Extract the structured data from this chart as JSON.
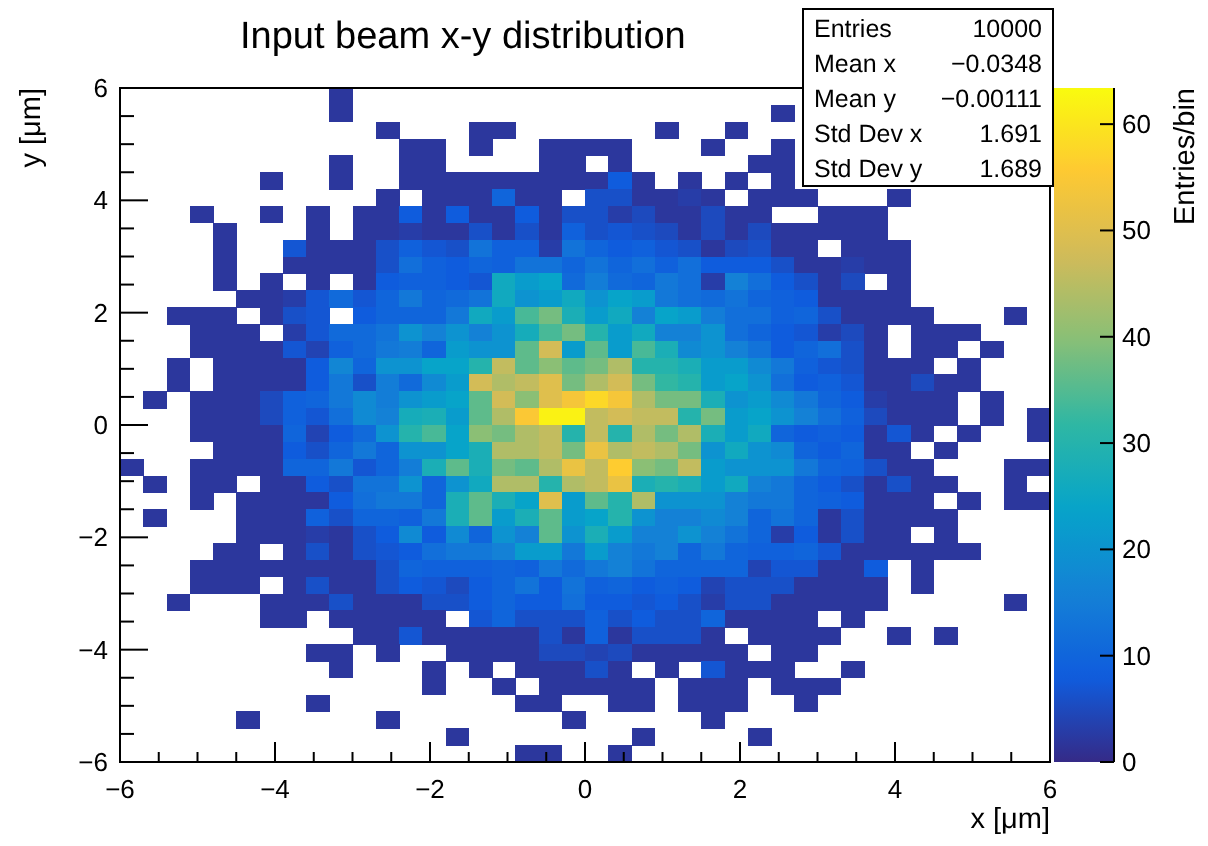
{
  "chart_data": {
    "type": "heatmap",
    "title": "Input beam x-y distribution",
    "xlabel": "x [μm]",
    "ylabel": "y [μm]",
    "clabel": "Entries/bin",
    "annotations": [
      "Entries 10000",
      "Mean x −0.0348",
      "Mean y −0.00111",
      "Std Dev x 1.691",
      "Std Dev y 1.689"
    ],
    "xlim": [
      -6,
      6
    ],
    "ylim": [
      -6,
      6
    ],
    "xticks": [
      -6,
      {
        "value": -5.5,
        "label": null
      },
      {
        "value": -5,
        "label": null
      },
      {
        "value": -4.5,
        "label": null
      },
      -4,
      {
        "value": -3.5,
        "label": null
      },
      {
        "value": -3,
        "label": null
      },
      {
        "value": -2.5,
        "label": null
      },
      -2,
      {
        "value": -1.5,
        "label": null
      },
      {
        "value": -1,
        "label": null
      },
      {
        "value": -0.5,
        "label": null
      },
      0,
      {
        "value": 0.5,
        "label": null
      },
      {
        "value": 1,
        "label": null
      },
      {
        "value": 1.5,
        "label": null
      },
      2,
      {
        "value": 2.5,
        "label": null
      },
      {
        "value": 3,
        "label": null
      },
      {
        "value": 3.5,
        "label": null
      },
      4,
      {
        "value": 4.5,
        "label": null
      },
      {
        "value": 5,
        "label": null
      },
      {
        "value": 5.5,
        "label": null
      },
      6
    ],
    "yticks": [
      -6,
      {
        "value": -5.5,
        "label": null
      },
      {
        "value": -5,
        "label": null
      },
      {
        "value": -4.5,
        "label": null
      },
      -4,
      {
        "value": -3.5,
        "label": null
      },
      {
        "value": -3,
        "label": null
      },
      {
        "value": -2.5,
        "label": null
      },
      -2,
      {
        "value": -1.5,
        "label": null
      },
      {
        "value": -1,
        "label": null
      },
      {
        "value": -0.5,
        "label": null
      },
      0,
      {
        "value": 0.5,
        "label": null
      },
      {
        "value": 1,
        "label": null
      },
      {
        "value": 1.5,
        "label": null
      },
      2,
      {
        "value": 2.5,
        "label": null
      },
      {
        "value": 3,
        "label": null
      },
      {
        "value": 3.5,
        "label": null
      },
      4,
      {
        "value": 4.5,
        "label": null
      },
      {
        "value": 5,
        "label": null
      },
      {
        "value": 5.5,
        "label": null
      },
      6
    ],
    "clim": [
      0,
      63.4
    ],
    "cticks": [
      0,
      10,
      20,
      30,
      40,
      50,
      60
    ],
    "cells": [
      [
        null,
        null,
        null,
        null,
        null,
        null,
        null,
        null,
        null,
        2,
        null,
        null,
        null,
        null,
        null,
        null,
        null,
        null,
        null,
        null,
        null,
        null,
        null,
        null,
        null,
        null,
        null,
        null,
        null,
        null,
        null,
        null,
        null,
        null,
        null,
        null,
        null,
        null,
        null,
        null
      ],
      [
        null,
        null,
        null,
        null,
        null,
        null,
        null,
        null,
        null,
        2,
        null,
        null,
        null,
        null,
        null,
        null,
        null,
        null,
        null,
        null,
        null,
        null,
        null,
        null,
        null,
        null,
        null,
        null,
        2,
        null,
        null,
        null,
        null,
        null,
        null,
        null,
        null,
        null,
        null,
        null
      ],
      [
        null,
        null,
        null,
        null,
        null,
        null,
        null,
        null,
        null,
        null,
        null,
        2,
        null,
        null,
        null,
        2,
        2,
        null,
        null,
        null,
        null,
        null,
        null,
        2,
        null,
        null,
        2,
        null,
        null,
        null,
        null,
        null,
        null,
        null,
        null,
        null,
        null,
        null,
        null,
        null
      ],
      [
        null,
        null,
        null,
        null,
        null,
        null,
        null,
        null,
        null,
        null,
        null,
        null,
        2,
        2,
        null,
        2,
        null,
        null,
        2,
        2,
        2,
        2,
        null,
        null,
        null,
        2,
        null,
        null,
        2,
        null,
        null,
        null,
        null,
        null,
        null,
        null,
        null,
        null,
        null,
        null
      ],
      [
        null,
        null,
        null,
        null,
        null,
        null,
        null,
        null,
        null,
        2,
        null,
        null,
        2,
        2,
        null,
        null,
        null,
        null,
        2,
        2,
        null,
        2,
        null,
        null,
        null,
        null,
        null,
        2,
        2,
        null,
        null,
        null,
        null,
        null,
        null,
        null,
        null,
        null,
        null,
        null
      ],
      [
        null,
        null,
        null,
        null,
        null,
        null,
        2,
        null,
        null,
        2,
        null,
        null,
        2,
        2,
        2,
        2,
        2,
        2,
        2,
        2,
        2,
        8,
        2,
        null,
        2,
        null,
        2,
        null,
        2,
        null,
        null,
        null,
        null,
        null,
        null,
        null,
        null,
        null,
        null,
        null
      ],
      [
        null,
        null,
        null,
        null,
        null,
        null,
        null,
        null,
        null,
        null,
        null,
        2,
        null,
        2,
        2,
        2,
        10,
        2,
        2,
        null,
        6,
        6,
        2,
        2,
        3,
        2,
        null,
        2,
        2,
        2,
        null,
        null,
        null,
        2,
        null,
        null,
        null,
        null,
        null,
        null
      ],
      [
        null,
        null,
        null,
        2,
        null,
        null,
        2,
        null,
        2,
        null,
        2,
        2,
        8,
        2,
        8,
        2,
        2,
        8,
        2,
        6,
        6,
        3,
        5,
        2,
        2,
        5,
        2,
        2,
        null,
        null,
        2,
        2,
        2,
        null,
        null,
        null,
        null,
        null,
        null,
        null
      ],
      [
        null,
        null,
        null,
        null,
        2,
        null,
        null,
        null,
        2,
        null,
        2,
        2,
        3,
        2,
        2,
        6,
        2,
        6,
        2,
        9,
        6,
        7,
        6,
        5,
        2,
        5,
        2,
        5,
        2,
        2,
        2,
        2,
        2,
        null,
        null,
        null,
        null,
        null,
        null,
        null
      ],
      [
        null,
        null,
        null,
        null,
        2,
        null,
        null,
        7,
        2,
        2,
        2,
        6,
        9,
        7,
        6,
        13,
        9,
        9,
        3,
        13,
        10,
        8,
        9,
        7,
        6,
        2,
        5,
        6,
        2,
        2,
        null,
        2,
        2,
        2,
        null,
        null,
        null,
        null,
        null,
        null
      ],
      [
        null,
        null,
        null,
        null,
        2,
        null,
        null,
        2,
        2,
        2,
        2,
        6,
        12,
        9,
        8,
        10,
        9,
        13,
        13,
        10,
        13,
        10,
        12,
        9,
        12,
        8,
        8,
        8,
        6,
        2,
        2,
        3,
        2,
        2,
        null,
        null,
        null,
        null,
        null,
        null
      ],
      [
        null,
        null,
        null,
        null,
        2,
        null,
        2,
        null,
        2,
        null,
        2,
        8,
        9,
        9,
        8,
        7,
        26,
        22,
        24,
        11,
        15,
        11,
        10,
        14,
        12,
        3,
        16,
        12,
        8,
        6,
        2,
        5,
        null,
        2,
        null,
        null,
        null,
        null,
        null,
        null
      ],
      [
        null,
        null,
        null,
        null,
        null,
        2,
        2,
        3,
        7,
        11,
        7,
        10,
        14,
        10,
        11,
        13,
        26,
        20,
        22,
        26,
        20,
        24,
        22,
        14,
        12,
        11,
        13,
        10,
        9,
        8,
        2,
        2,
        2,
        2,
        null,
        null,
        null,
        null,
        null,
        null
      ],
      [
        null,
        null,
        2,
        2,
        2,
        null,
        2,
        6,
        7,
        null,
        8,
        10,
        10,
        10,
        14,
        26,
        22,
        34,
        38,
        28,
        22,
        26,
        16,
        24,
        22,
        15,
        12,
        12,
        9,
        10,
        6,
        2,
        2,
        2,
        2,
        null,
        null,
        null,
        2,
        null
      ],
      [
        null,
        null,
        null,
        2,
        2,
        2,
        null,
        3,
        7,
        11,
        11,
        13,
        20,
        16,
        20,
        16,
        20,
        27,
        34,
        38,
        30,
        22,
        26,
        16,
        16,
        20,
        12,
        10,
        8,
        7,
        3,
        5,
        2,
        null,
        2,
        2,
        2,
        null,
        null,
        null
      ],
      [
        null,
        null,
        null,
        2,
        2,
        2,
        2,
        7,
        4,
        9,
        11,
        14,
        15,
        10,
        22,
        20,
        20,
        36,
        48,
        22,
        36,
        22,
        34,
        28,
        18,
        20,
        16,
        13,
        8,
        10,
        12,
        6,
        2,
        null,
        2,
        2,
        null,
        2,
        null,
        null
      ],
      [
        null,
        null,
        2,
        null,
        2,
        2,
        2,
        2,
        8,
        17,
        10,
        20,
        20,
        24,
        24,
        30,
        46,
        36,
        40,
        36,
        38,
        44,
        30,
        30,
        28,
        22,
        22,
        18,
        14,
        9,
        7,
        6,
        2,
        2,
        2,
        null,
        2,
        null,
        null,
        null
      ],
      [
        null,
        null,
        2,
        null,
        2,
        2,
        2,
        2,
        8,
        14,
        6,
        15,
        11,
        18,
        22,
        48,
        44,
        46,
        50,
        38,
        44,
        48,
        38,
        32,
        30,
        22,
        24,
        20,
        12,
        8,
        9,
        7,
        2,
        2,
        5,
        2,
        2,
        null,
        null,
        null
      ],
      [
        null,
        2,
        null,
        2,
        2,
        2,
        5,
        9,
        10,
        14,
        18,
        15,
        20,
        22,
        24,
        36,
        48,
        40,
        50,
        54,
        58,
        54,
        44,
        38,
        38,
        28,
        20,
        22,
        18,
        14,
        10,
        8,
        3,
        2,
        2,
        2,
        null,
        2,
        null,
        null
      ],
      [
        null,
        null,
        null,
        2,
        2,
        2,
        5,
        9,
        7,
        12,
        18,
        16,
        27,
        28,
        22,
        36,
        44,
        55,
        62,
        62,
        46,
        48,
        46,
        46,
        30,
        38,
        22,
        24,
        20,
        16,
        12,
        9,
        5,
        2,
        2,
        2,
        null,
        2,
        null,
        2
      ],
      [
        null,
        null,
        null,
        2,
        2,
        2,
        2,
        10,
        4,
        8,
        11,
        20,
        30,
        34,
        24,
        40,
        38,
        44,
        46,
        30,
        46,
        30,
        44,
        38,
        44,
        28,
        22,
        26,
        10,
        8,
        9,
        8,
        2,
        7,
        2,
        null,
        2,
        null,
        null,
        2
      ],
      [
        null,
        null,
        null,
        null,
        2,
        2,
        2,
        8,
        6,
        10,
        14,
        10,
        20,
        20,
        24,
        28,
        44,
        44,
        46,
        38,
        52,
        44,
        46,
        44,
        38,
        20,
        26,
        20,
        18,
        10,
        8,
        10,
        2,
        2,
        null,
        2,
        null,
        null,
        null,
        null
      ],
      [
        2,
        null,
        null,
        2,
        2,
        2,
        2,
        10,
        10,
        14,
        7,
        10,
        15,
        28,
        36,
        28,
        38,
        36,
        44,
        52,
        46,
        56,
        40,
        38,
        46,
        22,
        20,
        20,
        20,
        14,
        10,
        9,
        6,
        2,
        2,
        null,
        null,
        null,
        2,
        2
      ],
      [
        null,
        2,
        null,
        2,
        2,
        null,
        2,
        2,
        8,
        6,
        13,
        13,
        20,
        10,
        20,
        26,
        44,
        44,
        30,
        44,
        46,
        52,
        28,
        30,
        28,
        22,
        26,
        16,
        14,
        10,
        8,
        6,
        2,
        6,
        2,
        2,
        null,
        null,
        2,
        null
      ],
      [
        null,
        null,
        null,
        2,
        null,
        2,
        2,
        2,
        2,
        8,
        12,
        14,
        14,
        10,
        28,
        36,
        28,
        24,
        50,
        22,
        36,
        30,
        44,
        20,
        20,
        20,
        16,
        14,
        14,
        10,
        9,
        8,
        2,
        2,
        2,
        null,
        2,
        null,
        2,
        2
      ],
      [
        null,
        2,
        null,
        null,
        null,
        2,
        2,
        2,
        9,
        6,
        10,
        10,
        9,
        14,
        28,
        36,
        22,
        28,
        36,
        22,
        24,
        30,
        20,
        16,
        16,
        18,
        16,
        10,
        13,
        10,
        2,
        6,
        2,
        2,
        2,
        2,
        null,
        null,
        null,
        null
      ],
      [
        null,
        null,
        null,
        null,
        null,
        2,
        2,
        2,
        3,
        2,
        6,
        8,
        18,
        8,
        18,
        10,
        20,
        16,
        36,
        20,
        28,
        22,
        16,
        16,
        20,
        16,
        13,
        10,
        3,
        8,
        2,
        6,
        2,
        2,
        null,
        2,
        null,
        null,
        null,
        null
      ],
      [
        null,
        null,
        null,
        null,
        2,
        2,
        null,
        2,
        6,
        2,
        6,
        7,
        8,
        12,
        14,
        14,
        16,
        22,
        22,
        14,
        22,
        16,
        14,
        16,
        10,
        14,
        10,
        9,
        9,
        10,
        7,
        2,
        2,
        2,
        2,
        2,
        2,
        null,
        null,
        null
      ],
      [
        null,
        null,
        null,
        2,
        2,
        2,
        2,
        2,
        2,
        2,
        2,
        6,
        10,
        9,
        9,
        9,
        10,
        9,
        14,
        11,
        14,
        16,
        13,
        10,
        10,
        10,
        10,
        4,
        7,
        7,
        2,
        2,
        8,
        null,
        2,
        null,
        null,
        null,
        null,
        null
      ],
      [
        null,
        null,
        null,
        2,
        2,
        2,
        null,
        2,
        6,
        2,
        2,
        6,
        8,
        7,
        5,
        8,
        10,
        13,
        8,
        13,
        9,
        10,
        8,
        9,
        8,
        4,
        6,
        6,
        6,
        2,
        2,
        2,
        2,
        null,
        2,
        null,
        null,
        null,
        null,
        null
      ],
      [
        null,
        null,
        2,
        null,
        null,
        null,
        2,
        2,
        2,
        6,
        2,
        2,
        2,
        6,
        6,
        8,
        10,
        8,
        8,
        12,
        8,
        8,
        7,
        8,
        6,
        3,
        6,
        6,
        2,
        2,
        2,
        2,
        2,
        null,
        null,
        null,
        null,
        null,
        2,
        null
      ],
      [
        null,
        null,
        null,
        null,
        null,
        null,
        2,
        2,
        null,
        2,
        2,
        2,
        2,
        2,
        null,
        7,
        10,
        6,
        6,
        6,
        9,
        6,
        8,
        6,
        6,
        10,
        2,
        2,
        2,
        2,
        null,
        2,
        null,
        null,
        null,
        null,
        null,
        null,
        null,
        null
      ],
      [
        null,
        null,
        null,
        null,
        null,
        null,
        null,
        null,
        null,
        null,
        2,
        2,
        7,
        2,
        2,
        2,
        2,
        2,
        6,
        2,
        9,
        2,
        6,
        6,
        6,
        2,
        null,
        2,
        2,
        2,
        2,
        null,
        null,
        2,
        null,
        2,
        null,
        null,
        null,
        null
      ],
      [
        null,
        null,
        null,
        null,
        null,
        null,
        null,
        null,
        2,
        2,
        null,
        2,
        null,
        null,
        2,
        2,
        2,
        2,
        5,
        5,
        4,
        5,
        2,
        2,
        2,
        2,
        2,
        null,
        2,
        2,
        null,
        null,
        null,
        null,
        null,
        null,
        null,
        null,
        null,
        null
      ],
      [
        null,
        null,
        null,
        null,
        null,
        null,
        null,
        null,
        null,
        2,
        null,
        null,
        null,
        2,
        null,
        2,
        null,
        2,
        2,
        2,
        6,
        2,
        null,
        2,
        null,
        7,
        2,
        2,
        2,
        null,
        null,
        2,
        null,
        null,
        null,
        null,
        null,
        null,
        null,
        null
      ],
      [
        null,
        null,
        null,
        null,
        null,
        null,
        null,
        null,
        null,
        null,
        null,
        null,
        null,
        2,
        null,
        null,
        2,
        null,
        2,
        2,
        2,
        2,
        2,
        null,
        2,
        2,
        2,
        null,
        2,
        2,
        2,
        null,
        null,
        null,
        null,
        null,
        null,
        null,
        null,
        null
      ],
      [
        null,
        null,
        null,
        null,
        null,
        null,
        null,
        null,
        2,
        null,
        null,
        null,
        null,
        null,
        null,
        null,
        null,
        2,
        2,
        null,
        null,
        2,
        2,
        null,
        2,
        2,
        2,
        null,
        null,
        2,
        null,
        null,
        null,
        null,
        null,
        null,
        null,
        null,
        null,
        null
      ],
      [
        null,
        null,
        null,
        null,
        null,
        2,
        null,
        null,
        null,
        null,
        null,
        2,
        null,
        null,
        null,
        null,
        null,
        null,
        null,
        2,
        null,
        null,
        null,
        null,
        null,
        2,
        null,
        null,
        null,
        null,
        null,
        null,
        null,
        null,
        null,
        null,
        null,
        null,
        null,
        null
      ],
      [
        null,
        null,
        null,
        null,
        null,
        null,
        null,
        null,
        null,
        null,
        null,
        null,
        null,
        null,
        2,
        null,
        null,
        null,
        null,
        null,
        null,
        null,
        2,
        null,
        null,
        null,
        null,
        2,
        null,
        null,
        null,
        null,
        null,
        null,
        null,
        null,
        null,
        null,
        null,
        null
      ],
      [
        null,
        null,
        null,
        null,
        null,
        null,
        null,
        null,
        null,
        null,
        null,
        null,
        null,
        null,
        null,
        null,
        null,
        2,
        2,
        null,
        null,
        2,
        null,
        null,
        null,
        null,
        null,
        null,
        null,
        null,
        null,
        null,
        null,
        null,
        null,
        null,
        null,
        null,
        null,
        null
      ]
    ]
  }
}
